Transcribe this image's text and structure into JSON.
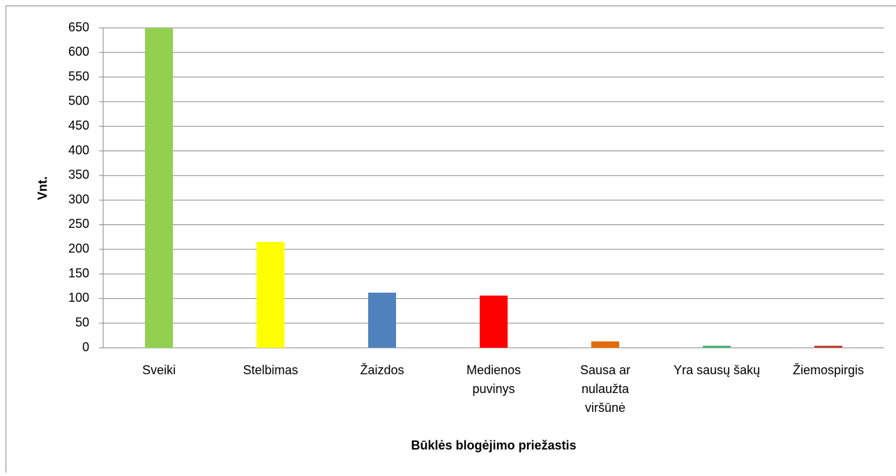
{
  "chart_data": {
    "type": "bar",
    "categories": [
      [
        "Sveiki"
      ],
      [
        "Stelbimas"
      ],
      [
        "Žaizdos"
      ],
      [
        "Medienos",
        "puvinys"
      ],
      [
        "Sausa ar",
        "nulaužta",
        "viršūnė"
      ],
      [
        "Yra sausų šakų"
      ],
      [
        "Žiemospirgis"
      ]
    ],
    "values": [
      650,
      215,
      112,
      106,
      13,
      4,
      4
    ],
    "colors": [
      "#92d050",
      "#ffff00",
      "#4f81bd",
      "#ff0000",
      "#e36c0a",
      "#3cb371",
      "#c0392b"
    ],
    "ylabel": "Vnt.",
    "xlabel": "Būklės blogėjimo priežastis",
    "ylim": [
      0,
      650
    ],
    "yticks": [
      0,
      50,
      100,
      150,
      200,
      250,
      300,
      350,
      400,
      450,
      500,
      550,
      600,
      650
    ],
    "grid": true
  }
}
